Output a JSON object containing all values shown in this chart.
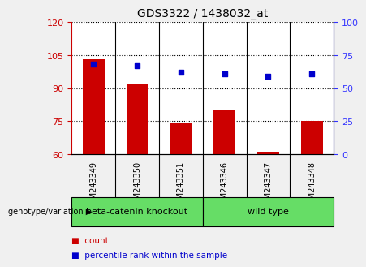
{
  "title": "GDS3322 / 1438032_at",
  "samples": [
    "GSM243349",
    "GSM243350",
    "GSM243351",
    "GSM243346",
    "GSM243347",
    "GSM243348"
  ],
  "counts": [
    103,
    92,
    74,
    80,
    61,
    75
  ],
  "percentile_ranks": [
    68,
    67,
    62,
    61,
    59,
    61
  ],
  "ylim_left": [
    60,
    120
  ],
  "yticks_left": [
    60,
    75,
    90,
    105,
    120
  ],
  "ylim_right": [
    0,
    100
  ],
  "yticks_right": [
    0,
    25,
    50,
    75,
    100
  ],
  "bar_color": "#cc0000",
  "dot_color": "#0000cc",
  "bar_bottom": 60,
  "group1_label": "beta-catenin knockout",
  "group2_label": "wild type",
  "group_color": "#66dd66",
  "group_label_left": "genotype/variation",
  "legend_count_label": "count",
  "legend_percentile_label": "percentile rank within the sample",
  "tick_bg_color": "#c8c8c8",
  "plot_bg": "#ffffff",
  "fig_bg": "#f0f0f0",
  "axis_left_color": "#cc0000",
  "axis_right_color": "#3333ff",
  "bar_width": 0.5
}
